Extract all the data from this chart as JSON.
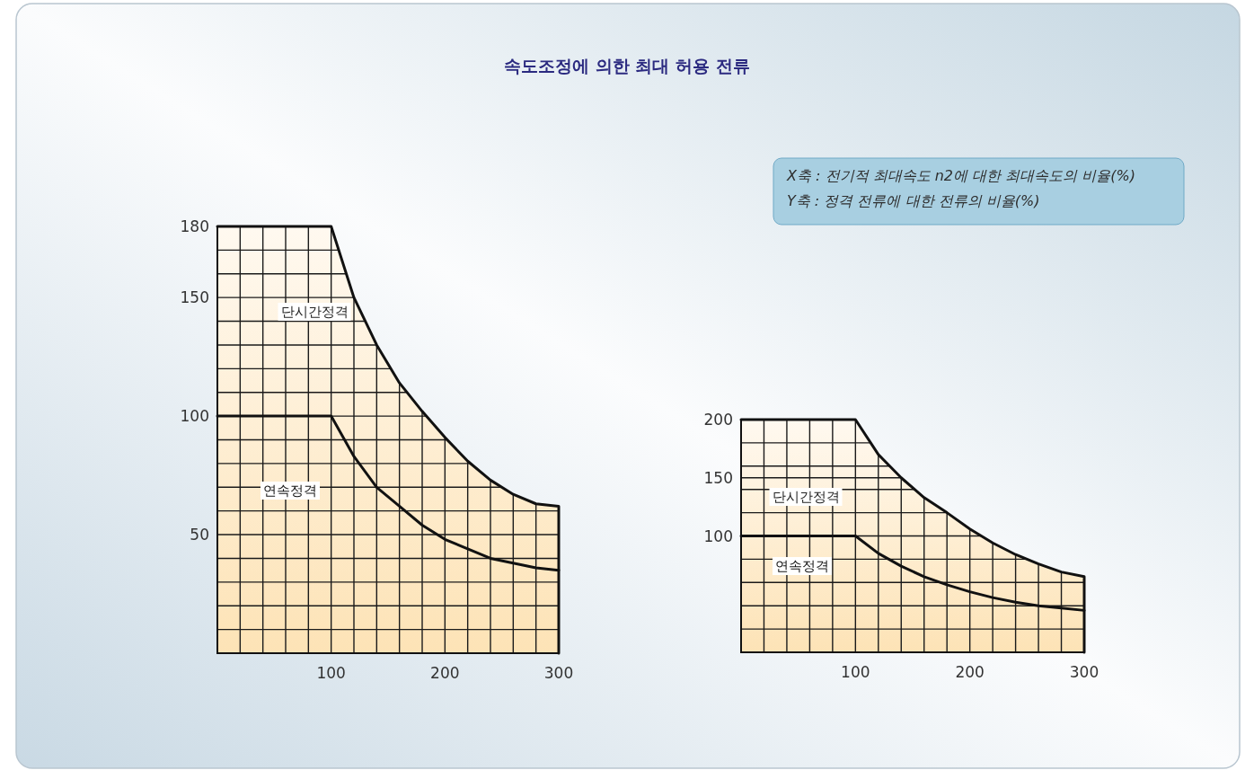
{
  "chart_data": [
    {
      "type": "line",
      "title": "속도조정에 의한 최대 허용 전류",
      "annotations": [
        "X축 : 전기적 최대속도 n2에 대한 최대속도의 비율(%)",
        "Y축 : 정격 전류에 대한 전류의 비율(%)"
      ],
      "grid": true,
      "xlim": [
        0,
        300
      ],
      "ylim": [
        0,
        180
      ],
      "xticks": [
        {
          "value": 20,
          "label": null
        },
        {
          "value": 40,
          "label": null
        },
        {
          "value": 60,
          "label": null
        },
        {
          "value": 80,
          "label": null
        },
        100,
        {
          "value": 120,
          "label": null
        },
        {
          "value": 140,
          "label": null
        },
        {
          "value": 160,
          "label": null
        },
        {
          "value": 180,
          "label": null
        },
        200,
        {
          "value": 220,
          "label": null
        },
        {
          "value": 240,
          "label": null
        },
        {
          "value": 260,
          "label": null
        },
        {
          "value": 280,
          "label": null
        },
        300
      ],
      "yticks": [
        {
          "value": 10,
          "label": null
        },
        {
          "value": 20,
          "label": null
        },
        {
          "value": 30,
          "label": null
        },
        {
          "value": 40,
          "label": null
        },
        50,
        {
          "value": 60,
          "label": null
        },
        {
          "value": 70,
          "label": null
        },
        {
          "value": 80,
          "label": null
        },
        {
          "value": 90,
          "label": null
        },
        100,
        {
          "value": 110,
          "label": null
        },
        {
          "value": 120,
          "label": null
        },
        {
          "value": 130,
          "label": null
        },
        {
          "value": 140,
          "label": null
        },
        150,
        {
          "value": 160,
          "label": null
        },
        {
          "value": 170,
          "label": null
        },
        180
      ],
      "x": [
        0,
        100,
        120,
        140,
        160,
        180,
        200,
        220,
        240,
        260,
        280,
        300
      ],
      "series": [
        {
          "name": "단시간정격",
          "type": "area",
          "color": "#fde3b6",
          "values": [
            180,
            180,
            150,
            130,
            114,
            102,
            91,
            81,
            73,
            67,
            63,
            62
          ]
        },
        {
          "name": "연속정격",
          "color": "#111111",
          "values": [
            100,
            100,
            83,
            70,
            62,
            54,
            48,
            44,
            40,
            38,
            36,
            35
          ]
        }
      ]
    },
    {
      "type": "line",
      "grid": true,
      "xlim": [
        0,
        300
      ],
      "ylim": [
        0,
        200
      ],
      "xticks": [
        {
          "value": 20,
          "label": null
        },
        {
          "value": 40,
          "label": null
        },
        {
          "value": 60,
          "label": null
        },
        {
          "value": 80,
          "label": null
        },
        100,
        {
          "value": 120,
          "label": null
        },
        {
          "value": 140,
          "label": null
        },
        {
          "value": 160,
          "label": null
        },
        {
          "value": 180,
          "label": null
        },
        200,
        {
          "value": 220,
          "label": null
        },
        {
          "value": 240,
          "label": null
        },
        {
          "value": 260,
          "label": null
        },
        {
          "value": 280,
          "label": null
        },
        300
      ],
      "yticks": [
        {
          "value": 20,
          "label": null
        },
        {
          "value": 40,
          "label": null
        },
        {
          "value": 60,
          "label": null
        },
        {
          "value": 80,
          "label": null
        },
        100,
        {
          "value": 120,
          "label": null
        },
        {
          "value": 140,
          "label": null
        },
        150,
        {
          "value": 160,
          "label": null
        },
        {
          "value": 180,
          "label": null
        },
        200
      ],
      "x": [
        0,
        100,
        120,
        140,
        160,
        180,
        200,
        220,
        240,
        260,
        280,
        300
      ],
      "series": [
        {
          "name": "단시간정격",
          "type": "area",
          "color": "#fde3b6",
          "values": [
            200,
            200,
            170,
            150,
            133,
            120,
            106,
            94,
            84,
            76,
            69,
            65
          ]
        },
        {
          "name": "연속정격",
          "color": "#111111",
          "values": [
            100,
            100,
            85,
            74,
            65,
            58,
            52,
            47,
            43,
            40,
            38,
            36
          ]
        }
      ]
    }
  ]
}
